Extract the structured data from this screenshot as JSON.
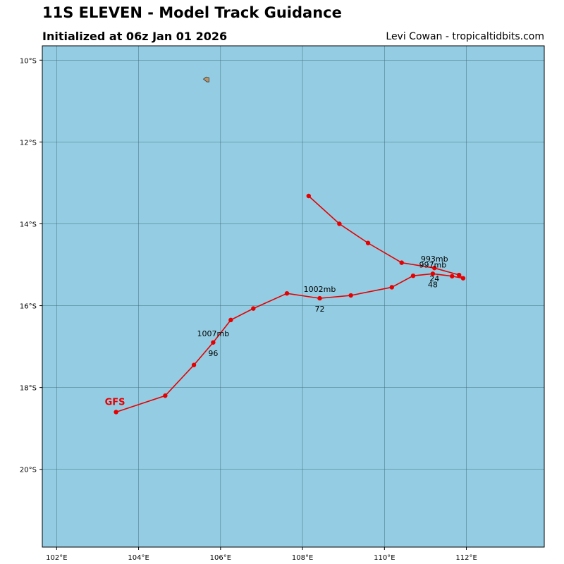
{
  "header": {
    "title": "11S ELEVEN - Model Track Guidance",
    "subtitle": "Initialized at 06z Jan 01 2026",
    "credit": "Levi Cowan - tropicaltidbits.com"
  },
  "colors": {
    "ocean": "#94cde3",
    "track": "#e60000",
    "land": "#b8956a",
    "grid": "#3f6f7a"
  },
  "map": {
    "lon_range": [
      101.65,
      113.9
    ],
    "lat_range": [
      -21.9,
      -9.65
    ],
    "lon_ticks": [
      102,
      104,
      106,
      108,
      110,
      112
    ],
    "lon_tick_labels": [
      "102°E",
      "104°E",
      "106°E",
      "108°E",
      "110°E",
      "112°E"
    ],
    "lat_ticks": [
      -10,
      -12,
      -14,
      -16,
      -18,
      -20
    ],
    "lat_tick_labels": [
      "10°S",
      "12°S",
      "14°S",
      "16°S",
      "18°S",
      "20°S"
    ],
    "grid": true,
    "island": {
      "name": "",
      "lon": 105.65,
      "lat": -10.48
    }
  },
  "chart_data": {
    "type": "scatter",
    "xlabel": "",
    "ylabel": "",
    "xlim": [
      101.65,
      113.9
    ],
    "ylim": [
      -21.9,
      -9.65
    ],
    "series": [
      {
        "name": "GFS",
        "points": [
          {
            "lon": 108.15,
            "lat": -13.32
          },
          {
            "lon": 108.9,
            "lat": -14.0
          },
          {
            "lon": 109.6,
            "lat": -14.47
          },
          {
            "lon": 110.42,
            "lat": -14.95
          },
          {
            "lon": 111.22,
            "lat": -15.08
          },
          {
            "lon": 111.82,
            "lat": -15.25
          },
          {
            "lon": 111.92,
            "lat": -15.33
          },
          {
            "lon": 111.65,
            "lat": -15.28
          },
          {
            "lon": 111.18,
            "lat": -15.22
          },
          {
            "lon": 110.7,
            "lat": -15.27
          },
          {
            "lon": 110.18,
            "lat": -15.55
          },
          {
            "lon": 109.18,
            "lat": -15.75
          },
          {
            "lon": 108.42,
            "lat": -15.82
          },
          {
            "lon": 107.62,
            "lat": -15.7
          },
          {
            "lon": 106.8,
            "lat": -16.07
          },
          {
            "lon": 106.25,
            "lat": -16.35
          },
          {
            "lon": 105.82,
            "lat": -16.9
          },
          {
            "lon": 105.35,
            "lat": -17.45
          },
          {
            "lon": 104.65,
            "lat": -18.2
          },
          {
            "lon": 103.45,
            "lat": -18.6
          }
        ]
      }
    ],
    "annotations": [
      {
        "text": "993mb",
        "lon": 111.22,
        "lat": -15.08,
        "pos": "above"
      },
      {
        "text": "997mb",
        "lon": 111.18,
        "lat": -15.22,
        "pos": "above"
      },
      {
        "text": "24",
        "lon": 111.22,
        "lat": -15.08,
        "pos": "below"
      },
      {
        "text": "48",
        "lon": 111.18,
        "lat": -15.22,
        "pos": "below"
      },
      {
        "text": "1002mb",
        "lon": 108.42,
        "lat": -15.82,
        "pos": "above"
      },
      {
        "text": "72",
        "lon": 108.42,
        "lat": -15.82,
        "pos": "below"
      },
      {
        "text": "1007mb",
        "lon": 105.82,
        "lat": -16.9,
        "pos": "above"
      },
      {
        "text": "96",
        "lon": 105.82,
        "lat": -16.9,
        "pos": "below"
      }
    ]
  }
}
